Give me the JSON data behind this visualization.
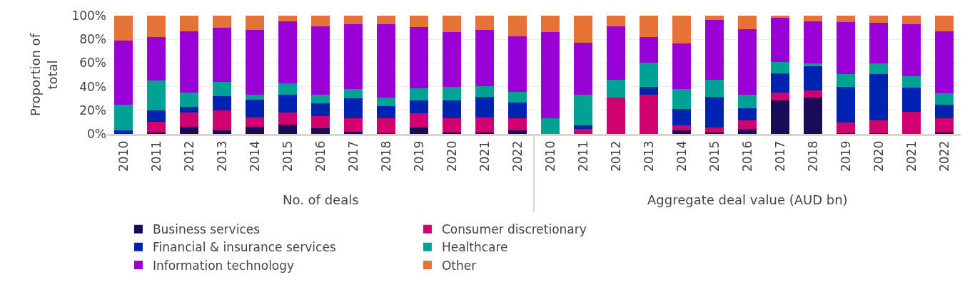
{
  "chart_data": {
    "type": "bar",
    "stacked": true,
    "ylabel": "Proportion of total",
    "categories": [
      "2010",
      "2011",
      "2012",
      "2013",
      "2014",
      "2015",
      "2016",
      "2017",
      "2018",
      "2019",
      "2020",
      "2021",
      "2022",
      "2010",
      "2011",
      "2012",
      "2013",
      "2014",
      "2015",
      "2016",
      "2017",
      "2018",
      "2019",
      "2020",
      "2021",
      "2022"
    ],
    "annotations": [
      "No. of deals",
      "Aggregate deal value (AUD bn)"
    ],
    "series": [
      {
        "name": "Business services",
        "color": "#1b0a57",
        "values": [
          0,
          1,
          6,
          3,
          6,
          8,
          5,
          2,
          0.5,
          5.5,
          1.5,
          1,
          3,
          0,
          0,
          0,
          0,
          3,
          1.5,
          4.5,
          28.5,
          31,
          0.5,
          0.5,
          0,
          1.5
        ]
      },
      {
        "name": "Consumer discretionary",
        "color": "#d1006f",
        "values": [
          0,
          9,
          12,
          17,
          8,
          10,
          10,
          11,
          12.5,
          12,
          11.5,
          13,
          10,
          0,
          4,
          31,
          33,
          4.5,
          4,
          7,
          6.5,
          5.5,
          9,
          11,
          18.5,
          12
        ]
      },
      {
        "name": "Financial & insurance services",
        "color": "#0022b0",
        "values": [
          3,
          10,
          5,
          12,
          15,
          15,
          11,
          17,
          10.5,
          11,
          15.5,
          17.5,
          13.5,
          0,
          3,
          0,
          6.5,
          13.5,
          26,
          10,
          16,
          20.5,
          30.5,
          39,
          20.5,
          11.5
        ]
      },
      {
        "name": "Healthcare",
        "color": "#00a393",
        "values": [
          22,
          25,
          12,
          12,
          4,
          10,
          7,
          8,
          7,
          10,
          11,
          9,
          9,
          13,
          26,
          15,
          20.5,
          17,
          14.5,
          11.5,
          10,
          2.5,
          10.5,
          9,
          9.5,
          9.5
        ]
      },
      {
        "name": "Information technology",
        "color": "#9900d6",
        "values": [
          54,
          37,
          52,
          46,
          55,
          52,
          58,
          55,
          62,
          52,
          46.5,
          47.5,
          47,
          73,
          44,
          45,
          22,
          38.5,
          50.5,
          55.5,
          37,
          35.5,
          44,
          34.5,
          44,
          52
        ]
      },
      {
        "name": "Other",
        "color": "#e67235",
        "values": [
          21,
          18,
          13,
          10,
          12,
          5,
          9,
          7,
          7.5,
          9.5,
          14,
          12,
          17.5,
          14,
          23,
          9,
          18,
          23.5,
          3.5,
          11.5,
          2,
          5,
          5.5,
          6,
          7.5,
          13.5
        ]
      }
    ],
    "ylim": [
      0,
      100
    ],
    "yticks": [
      {
        "value": 0,
        "label": "0%"
      },
      {
        "value": 20,
        "label": "20%"
      },
      {
        "value": 40,
        "label": "40%"
      },
      {
        "value": 60,
        "label": "60%"
      },
      {
        "value": 80,
        "label": "80%"
      },
      {
        "value": 100,
        "label": "100%"
      }
    ],
    "grid": "y",
    "legend": "bottom"
  }
}
